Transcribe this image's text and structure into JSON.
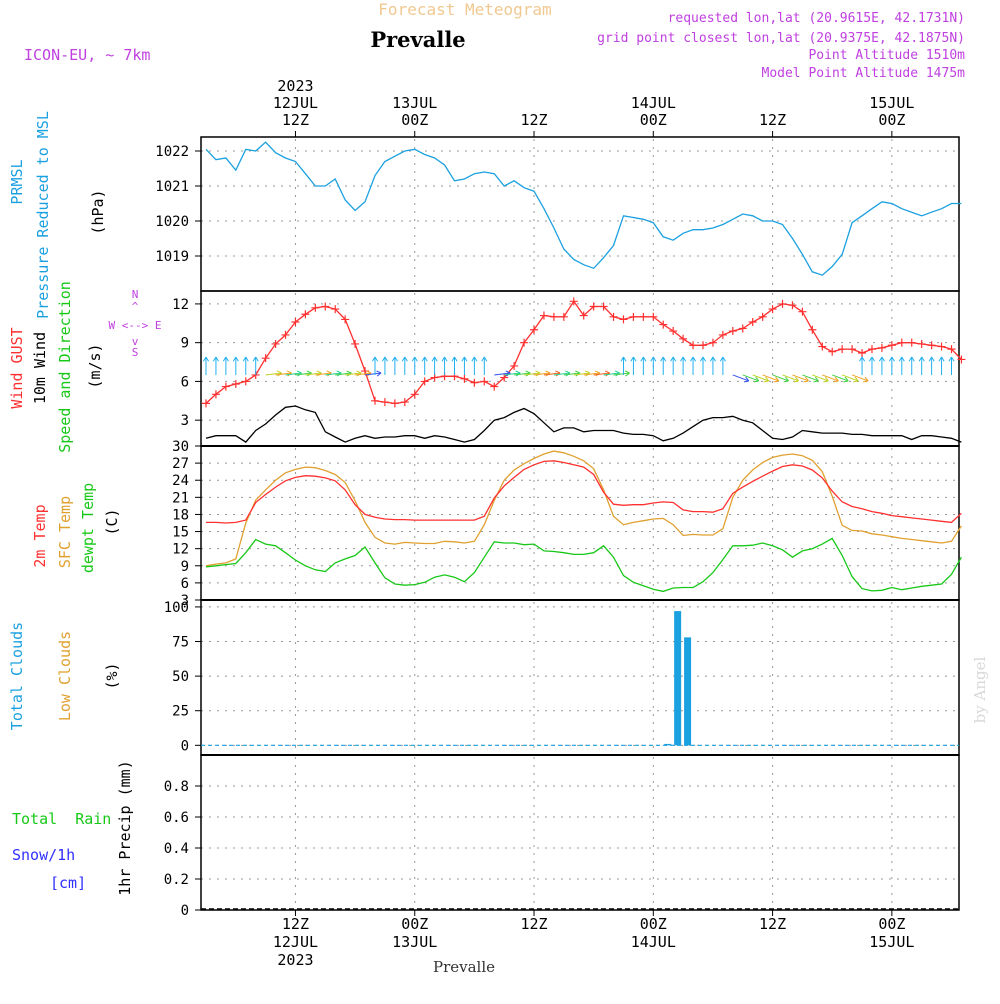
{
  "header": {
    "title": "Forecast Meteogram",
    "location": "Prevalle",
    "model": "ICON-EU, ~ 7km",
    "requested": "requested lon,lat (20.9615E, 42.1731N)",
    "grid": "grid point closest lon,lat (20.9375E, 42.1875N)",
    "point_alt": "Point Altitude 1510m",
    "model_alt": "Model Point Altitude 1475m"
  },
  "footer": {
    "location": "Prevalle",
    "watermark": "by Angel"
  },
  "time_axis": {
    "top_labels": [
      {
        "lines": [
          "2023",
          "12JUL",
          "12Z"
        ]
      },
      {
        "lines": [
          "13JUL",
          "00Z"
        ]
      },
      {
        "lines": [
          "12Z"
        ]
      },
      {
        "lines": [
          "14JUL",
          "00Z"
        ]
      },
      {
        "lines": [
          "12Z"
        ]
      },
      {
        "lines": [
          "15JUL",
          "00Z"
        ]
      }
    ],
    "bottom_labels": [
      {
        "lines": [
          "12Z",
          "12JUL",
          "2023"
        ]
      },
      {
        "lines": [
          "00Z",
          "13JUL"
        ]
      },
      {
        "lines": [
          "12Z"
        ]
      },
      {
        "lines": [
          "00Z",
          "14JUL"
        ]
      },
      {
        "lines": [
          "12Z"
        ]
      },
      {
        "lines": [
          "00Z",
          "15JUL"
        ]
      }
    ]
  },
  "colors": {
    "pressure": "#1ba0e0",
    "gust": "#ff3030",
    "wind": "#000000",
    "temp": "#ff3030",
    "sfc": "#e0a030",
    "dewpt": "#18c818",
    "total_clouds": "#1ba0e0",
    "low_clouds": "#e0a030",
    "rain": "#18c818",
    "snow": "#3030ff",
    "header_purple": "#c040e0"
  },
  "chart_data": [
    {
      "type": "line",
      "panel": "pressure",
      "ylabel_lines": [
        "PRMSL",
        "Pressure Reduced to MSL"
      ],
      "unit": "(hPa)",
      "ylim": [
        1018.0,
        1022.4
      ],
      "yticks": [
        1019,
        1020,
        1021,
        1022
      ],
      "x_hours": [
        0,
        1,
        2,
        3,
        4,
        5,
        6,
        7,
        8,
        9,
        10,
        11,
        12,
        13,
        14,
        15,
        16,
        17,
        18,
        19,
        20,
        21,
        22,
        23,
        24,
        25,
        26,
        27,
        28,
        29,
        30,
        31,
        32,
        33,
        34,
        35,
        36,
        37,
        38,
        39,
        40,
        41,
        42,
        43,
        44,
        45,
        46,
        47,
        48,
        49,
        50,
        51,
        52,
        53,
        54,
        55,
        56,
        57,
        58,
        59,
        60,
        61,
        62,
        63,
        64,
        65,
        66,
        67,
        68,
        69,
        70,
        71,
        72,
        73,
        74,
        75,
        76
      ],
      "series": [
        {
          "name": "PRMSL",
          "values": [
            1022.05,
            1021.75,
            1021.8,
            1021.45,
            1022.05,
            1022.0,
            1022.25,
            1021.95,
            1021.8,
            1021.7,
            1021.35,
            1021.0,
            1021.0,
            1021.2,
            1020.6,
            1020.3,
            1020.55,
            1021.3,
            1021.7,
            1021.85,
            1022.0,
            1022.05,
            1021.9,
            1021.8,
            1021.6,
            1021.15,
            1021.2,
            1021.35,
            1021.4,
            1021.35,
            1021.0,
            1021.15,
            1020.95,
            1020.85,
            1020.35,
            1019.8,
            1019.2,
            1018.9,
            1018.75,
            1018.65,
            1018.95,
            1019.3,
            1020.15,
            1020.1,
            1020.05,
            1019.95,
            1019.55,
            1019.45,
            1019.65,
            1019.75,
            1019.75,
            1019.8,
            1019.9,
            1020.05,
            1020.2,
            1020.15,
            1020.0,
            1020.0,
            1019.9,
            1019.5,
            1019.05,
            1018.55,
            1018.45,
            1018.7,
            1019.05,
            1019.95,
            1020.15,
            1020.35,
            1020.55,
            1020.5,
            1020.35,
            1020.25,
            1020.15,
            1020.25,
            1020.35,
            1020.5,
            1020.5
          ]
        }
      ]
    },
    {
      "type": "line",
      "panel": "wind",
      "ylabel_lines": [
        "Wind GUST",
        "10m Wind",
        "Speed and Direction"
      ],
      "unit": "(m/s)",
      "compass": [
        "N",
        "W <--> E",
        "S"
      ],
      "ylim": [
        1.0,
        13.0
      ],
      "yticks": [
        3,
        6,
        9,
        12
      ],
      "x_hours": [
        0,
        1,
        2,
        3,
        4,
        5,
        6,
        7,
        8,
        9,
        10,
        11,
        12,
        13,
        14,
        15,
        16,
        17,
        18,
        19,
        20,
        21,
        22,
        23,
        24,
        25,
        26,
        27,
        28,
        29,
        30,
        31,
        32,
        33,
        34,
        35,
        36,
        37,
        38,
        39,
        40,
        41,
        42,
        43,
        44,
        45,
        46,
        47,
        48,
        49,
        50,
        51,
        52,
        53,
        54,
        55,
        56,
        57,
        58,
        59,
        60,
        61,
        62,
        63,
        64,
        65,
        66,
        67,
        68,
        69,
        70,
        71,
        72,
        73,
        74,
        75,
        76
      ],
      "series": [
        {
          "name": "Wind GUST",
          "values": [
            4.3,
            5.0,
            5.6,
            5.8,
            6.0,
            6.5,
            7.8,
            8.9,
            9.6,
            10.6,
            11.2,
            11.7,
            11.8,
            11.6,
            10.8,
            8.9,
            6.8,
            4.5,
            4.4,
            4.3,
            4.4,
            5.0,
            6.0,
            6.3,
            6.4,
            6.4,
            6.2,
            5.9,
            6.0,
            5.6,
            6.3,
            7.2,
            9.0,
            10.0,
            11.1,
            11.0,
            11.0,
            12.2,
            11.1,
            11.8,
            11.8,
            11.0,
            10.8,
            11.0,
            11.0,
            11.0,
            10.4,
            9.9,
            9.3,
            8.8,
            8.8,
            9.0,
            9.6,
            9.9,
            10.1,
            10.6,
            11.0,
            11.6,
            12.0,
            11.9,
            11.4,
            10.0,
            8.7,
            8.3,
            8.5,
            8.5,
            8.2,
            8.5,
            8.6,
            8.8,
            9.0,
            9.0,
            8.9,
            8.8,
            8.7,
            8.5,
            7.7
          ]
        },
        {
          "name": "10m Wind",
          "values": [
            1.6,
            1.8,
            1.8,
            1.8,
            1.3,
            2.2,
            2.7,
            3.4,
            4.0,
            4.1,
            3.8,
            3.6,
            2.1,
            1.7,
            1.3,
            1.6,
            1.8,
            1.6,
            1.7,
            1.7,
            1.8,
            1.8,
            1.6,
            1.8,
            1.7,
            1.5,
            1.3,
            1.5,
            2.2,
            3.0,
            3.2,
            3.6,
            3.9,
            3.5,
            2.8,
            2.1,
            2.4,
            2.4,
            2.1,
            2.2,
            2.2,
            2.2,
            2.0,
            1.9,
            1.9,
            1.8,
            1.4,
            1.6,
            2.0,
            2.5,
            3.0,
            3.2,
            3.2,
            3.3,
            3.0,
            2.8,
            2.2,
            1.6,
            1.5,
            1.7,
            2.2,
            2.1,
            2.0,
            2.0,
            2.0,
            1.9,
            1.9,
            1.8,
            1.8,
            1.8,
            1.8,
            1.5,
            1.8,
            1.8,
            1.7,
            1.6,
            1.3
          ]
        }
      ]
    },
    {
      "type": "line",
      "panel": "temperature",
      "ylabel_lines": [
        "2m Temp",
        "SFC Temp",
        "dewpt Temp"
      ],
      "unit": "(C)",
      "ylim": [
        3,
        30
      ],
      "yticks": [
        3,
        6,
        9,
        12,
        15,
        18,
        21,
        24,
        27,
        30
      ],
      "x_hours": [
        0,
        1,
        2,
        3,
        4,
        5,
        6,
        7,
        8,
        9,
        10,
        11,
        12,
        13,
        14,
        15,
        16,
        17,
        18,
        19,
        20,
        21,
        22,
        23,
        24,
        25,
        26,
        27,
        28,
        29,
        30,
        31,
        32,
        33,
        34,
        35,
        36,
        37,
        38,
        39,
        40,
        41,
        42,
        43,
        44,
        45,
        46,
        47,
        48,
        49,
        50,
        51,
        52,
        53,
        54,
        55,
        56,
        57,
        58,
        59,
        60,
        61,
        62,
        63,
        64,
        65,
        66,
        67,
        68,
        69,
        70,
        71,
        72,
        73,
        74,
        75,
        76
      ],
      "series": [
        {
          "name": "2m Temp",
          "values": [
            16.6,
            16.6,
            16.5,
            16.6,
            17.0,
            20.1,
            21.5,
            22.8,
            23.9,
            24.5,
            24.8,
            24.7,
            24.4,
            23.9,
            22.3,
            19.7,
            18.0,
            17.5,
            17.2,
            17.1,
            17.1,
            17.0,
            17.0,
            17.0,
            17.0,
            17.0,
            17.0,
            17.0,
            17.7,
            20.9,
            23.0,
            24.5,
            25.9,
            26.7,
            27.3,
            27.4,
            27.1,
            26.7,
            26.3,
            25.0,
            21.9,
            19.8,
            19.6,
            19.7,
            19.7,
            20.0,
            20.2,
            20.1,
            18.8,
            18.5,
            18.5,
            18.4,
            19.0,
            21.7,
            22.8,
            23.8,
            24.7,
            25.6,
            26.4,
            26.7,
            26.5,
            25.8,
            24.4,
            22.1,
            20.2,
            19.4,
            19.0,
            18.5,
            18.2,
            17.8,
            17.6,
            17.4,
            17.2,
            17.0,
            16.8,
            16.6,
            18.2
          ]
        },
        {
          "name": "SFC Temp",
          "values": [
            9.0,
            9.3,
            9.5,
            10.2,
            16.5,
            20.5,
            22.3,
            24.0,
            25.3,
            25.9,
            26.3,
            26.2,
            25.7,
            25.0,
            23.6,
            20.4,
            16.6,
            14.0,
            13.0,
            12.8,
            13.1,
            13.0,
            12.9,
            12.9,
            13.3,
            13.2,
            13.0,
            13.3,
            16.2,
            20.5,
            24.0,
            25.8,
            26.9,
            27.8,
            28.6,
            29.1,
            28.8,
            28.2,
            27.4,
            26.0,
            22.3,
            17.7,
            16.2,
            16.6,
            16.9,
            17.2,
            17.3,
            16.2,
            14.3,
            14.5,
            14.4,
            14.4,
            15.5,
            21.0,
            24.0,
            25.8,
            27.1,
            28.0,
            28.4,
            28.6,
            28.3,
            27.5,
            25.5,
            21.2,
            16.1,
            15.2,
            15.1,
            14.6,
            14.4,
            14.1,
            13.8,
            13.6,
            13.4,
            13.2,
            13.0,
            13.3,
            16.0
          ]
        },
        {
          "name": "dewpt Temp",
          "values": [
            8.8,
            9.0,
            9.2,
            9.4,
            11.3,
            13.6,
            12.8,
            12.5,
            11.3,
            10.0,
            9.0,
            8.3,
            8.0,
            9.5,
            10.2,
            10.8,
            12.3,
            9.5,
            6.9,
            5.8,
            5.6,
            5.7,
            6.1,
            7.0,
            7.4,
            7.0,
            6.2,
            7.8,
            10.5,
            13.2,
            13.0,
            13.0,
            12.7,
            12.8,
            11.6,
            11.5,
            11.3,
            11.0,
            11.0,
            11.3,
            12.5,
            10.5,
            7.3,
            6.1,
            5.5,
            4.9,
            4.5,
            5.1,
            5.2,
            5.2,
            6.2,
            7.8,
            10.1,
            12.5,
            12.5,
            12.6,
            13.0,
            12.5,
            11.8,
            10.5,
            11.6,
            12.0,
            12.8,
            13.8,
            10.8,
            7.1,
            5.0,
            4.6,
            4.7,
            5.2,
            4.8,
            5.1,
            5.4,
            5.6,
            5.8,
            7.5,
            10.5
          ]
        }
      ]
    },
    {
      "type": "bar",
      "panel": "clouds",
      "ylabel_lines": [
        "Total Clouds",
        "Low Clouds"
      ],
      "unit": "(%)",
      "ylim": [
        -7,
        105
      ],
      "yticks": [
        0,
        25,
        50,
        75,
        100
      ],
      "bars": [
        {
          "name": "Total Clouds",
          "x_hour": 46.5,
          "value": 1
        },
        {
          "name": "Total Clouds",
          "x_hour": 47.5,
          "value": 97
        },
        {
          "name": "Total Clouds",
          "x_hour": 48.5,
          "value": 78
        }
      ]
    },
    {
      "type": "line",
      "panel": "precip",
      "ylabel_lines": [
        "Total  Rain",
        "Snow/1h",
        "[cm]"
      ],
      "unit": "1hr Precip (mm)",
      "ylim": [
        0,
        1
      ],
      "yticks": [
        0,
        0.2,
        0.4,
        0.6,
        0.8
      ],
      "series": [
        {
          "name": "Total Rain",
          "values": [
            0
          ]
        },
        {
          "name": "Snow/1h",
          "values": [
            0
          ]
        }
      ]
    }
  ]
}
